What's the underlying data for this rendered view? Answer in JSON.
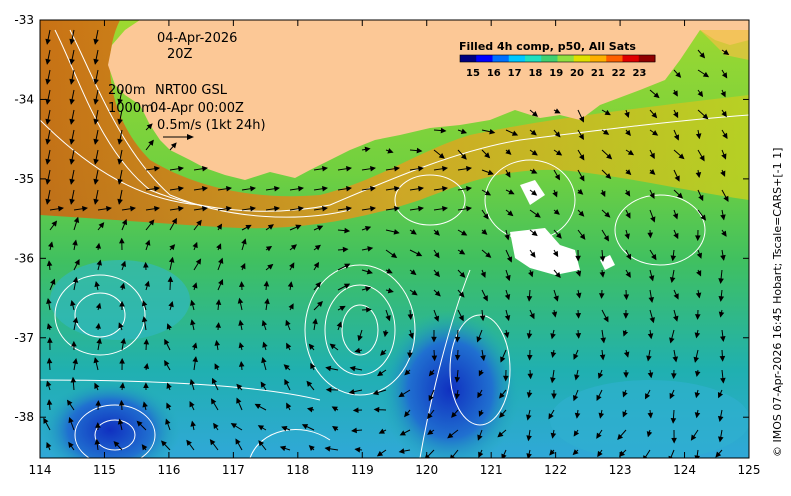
{
  "annotations": {
    "date": "04-Apr-2026",
    "hour": "20Z",
    "contour_200m": "200m",
    "contour_1000m": "1000m",
    "product": "NRT00 GSL",
    "valid_time": "04-Apr 00:00Z",
    "scale_label": "0.5m/s (1kt 24h)"
  },
  "colorbar": {
    "title": "Filled 4h comp, p50, All Sats",
    "ticks": [
      "15",
      "16",
      "17",
      "18",
      "19",
      "20",
      "21",
      "22",
      "23"
    ],
    "colors": [
      "#00007f",
      "#0000ff",
      "#0070ff",
      "#00c8ff",
      "#20e0c0",
      "#40d070",
      "#90e040",
      "#e0e000",
      "#ffb000",
      "#ff6000",
      "#e00000",
      "#900000"
    ]
  },
  "axes": {
    "x_ticks": [
      "114",
      "115",
      "116",
      "117",
      "118",
      "119",
      "120",
      "121",
      "122",
      "123",
      "124",
      "125"
    ],
    "y_ticks": [
      "-33",
      "-34",
      "-35",
      "-36",
      "-37",
      "-38"
    ]
  },
  "credit": "© IMOS 07-Apr-2026 16:45 Hobart; Tscale=CARS+[-1 1]",
  "colors": {
    "land": "#fcc896",
    "warm_shelf": "#e0a020",
    "sea_mid": "#50c840",
    "sea_cool": "#20b8c0"
  }
}
